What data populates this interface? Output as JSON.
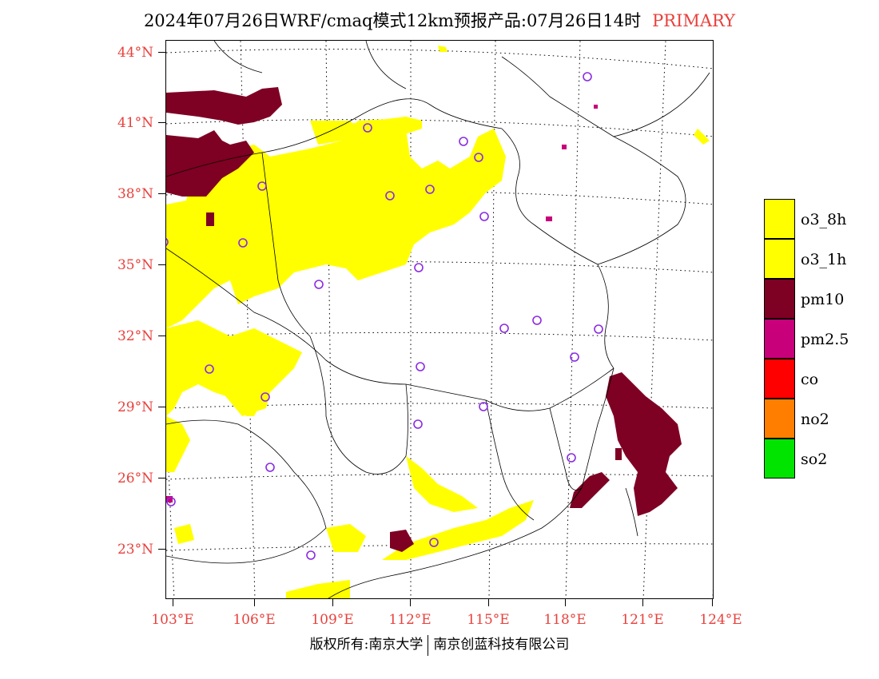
{
  "header": {
    "title": "2024年07月26日WRF/cmaq模式12km预报产品:07月26日14时",
    "primary_label": "PRIMARY"
  },
  "axes": {
    "lat_labels": [
      "44°N",
      "41°N",
      "38°N",
      "35°N",
      "32°N",
      "29°N",
      "26°N",
      "23°N"
    ],
    "lon_labels": [
      "103°E",
      "106°E",
      "109°E",
      "112°E",
      "115°E",
      "118°E",
      "121°E",
      "124°E"
    ]
  },
  "legend": {
    "items": [
      {
        "label": "o3_8h",
        "color": "#ffff00"
      },
      {
        "label": "o3_1h",
        "color": "#ffff00"
      },
      {
        "label": "pm10",
        "color": "#7e0023"
      },
      {
        "label": "pm2.5",
        "color": "#c8007a"
      },
      {
        "label": "co",
        "color": "#ff0000"
      },
      {
        "label": "no2",
        "color": "#ff7e00"
      },
      {
        "label": "so2",
        "color": "#00e400"
      }
    ]
  },
  "footer": {
    "copyright": "版权所有:南京大学",
    "company": "南京创蓝科技有限公司"
  },
  "colors": {
    "o3": "#ffff00",
    "pm10": "#7e0023",
    "pm25": "#c8007a",
    "station_marker": "#8a2be2",
    "axis_label": "#e8413c"
  }
}
